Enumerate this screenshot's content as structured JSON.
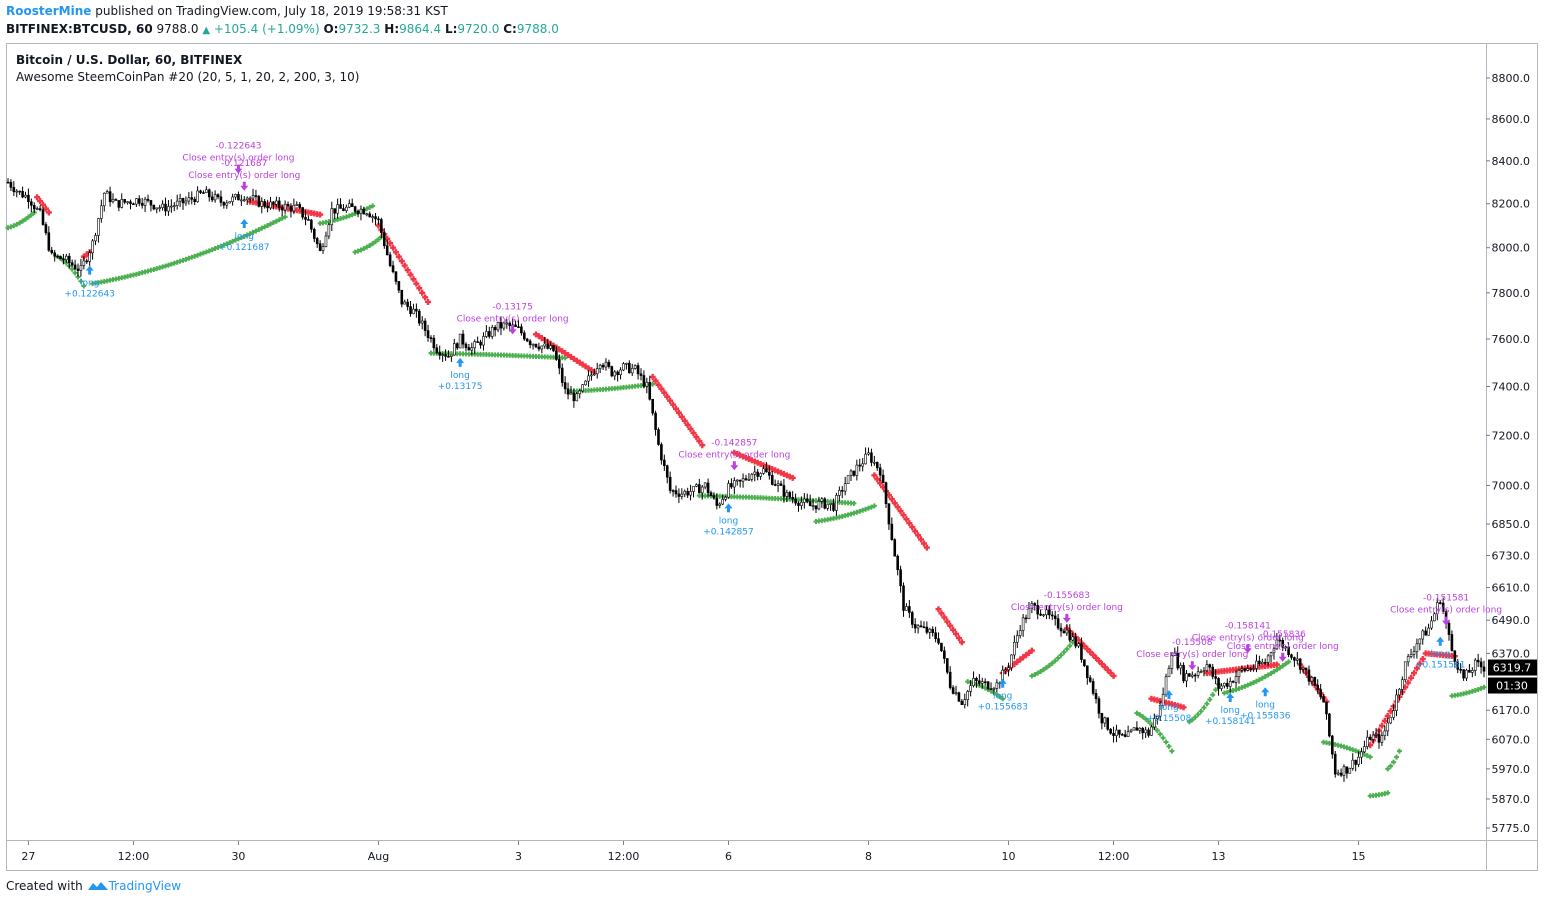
{
  "header": {
    "author": "RoosterMine",
    "published_text": "published on TradingView.com, July 18, 2019 19:58:31 KST",
    "symbol": "BITFINEX:BTCUSD, 60",
    "last": "9788.0",
    "change": "+105.4 (+1.09%)",
    "o_label": "O:",
    "o": "9732.3",
    "h_label": "H:",
    "h": "9864.4",
    "l_label": "L:",
    "l": "9720.0",
    "c_label": "C:",
    "c": "9788.0"
  },
  "legend": {
    "title": "Bitcoin / U.S. Dollar, 60, BITFINEX",
    "indicator": "Awesome SteemCoinPan #20 (20, 5, 1, 20, 2, 200, 3, 10)"
  },
  "footer": {
    "created_with": "Created with",
    "brand": "TradingView"
  },
  "colors": {
    "candle": "#000000",
    "sar_up": "#4caf50",
    "sar_down": "#f23645",
    "long_marker": "#2196f3",
    "close_marker": "#bb40e0",
    "axis_text": "#131722",
    "price_tag_bg": "#000000"
  },
  "chart_data": {
    "type": "candlestick",
    "title": "Bitcoin / U.S. Dollar, 60, BITFINEX",
    "ylim": [
      5730,
      8900
    ],
    "y_scale": "log",
    "y_ticks": [
      "8800.0",
      "8600.0",
      "8400.0",
      "8200.0",
      "8000.0",
      "7800.0",
      "7600.0",
      "7400.0",
      "7200.0",
      "7000.0",
      "6850.0",
      "6730.0",
      "6610.0",
      "6490.0",
      "6370.0",
      "6170.0",
      "6070.0",
      "5970.0",
      "5870.0",
      "5775.0"
    ],
    "x_ticks": [
      {
        "label": "27",
        "h": 0
      },
      {
        "label": "12:00",
        "h": 36
      },
      {
        "label": "30",
        "h": 72
      },
      {
        "label": "Aug",
        "h": 120
      },
      {
        "label": "3",
        "h": 168
      },
      {
        "label": "12:00",
        "h": 204
      },
      {
        "label": "6",
        "h": 240
      },
      {
        "label": "8",
        "h": 288
      },
      {
        "label": "10",
        "h": 336
      },
      {
        "label": "12:00",
        "h": 372
      },
      {
        "label": "13",
        "h": 408
      },
      {
        "label": "15",
        "h": 456
      }
    ],
    "x_range_hours": [
      -7,
      499
    ],
    "last_price_label": "6319.7",
    "countdown_label": "01:30",
    "price_path": [
      [
        -7,
        8300
      ],
      [
        -3,
        8250
      ],
      [
        0,
        8230
      ],
      [
        4,
        8150
      ],
      [
        8,
        7960
      ],
      [
        12,
        7950
      ],
      [
        18,
        7900
      ],
      [
        22,
        8020
      ],
      [
        26,
        8250
      ],
      [
        30,
        8200
      ],
      [
        38,
        8220
      ],
      [
        46,
        8180
      ],
      [
        54,
        8210
      ],
      [
        60,
        8250
      ],
      [
        66,
        8210
      ],
      [
        70,
        8220
      ],
      [
        74,
        8240
      ],
      [
        80,
        8200
      ],
      [
        86,
        8190
      ],
      [
        92,
        8180
      ],
      [
        96,
        8120
      ],
      [
        100,
        7980
      ],
      [
        104,
        8170
      ],
      [
        110,
        8180
      ],
      [
        116,
        8170
      ],
      [
        120,
        8120
      ],
      [
        124,
        7920
      ],
      [
        128,
        7760
      ],
      [
        132,
        7720
      ],
      [
        136,
        7640
      ],
      [
        140,
        7560
      ],
      [
        144,
        7530
      ],
      [
        148,
        7600
      ],
      [
        152,
        7560
      ],
      [
        156,
        7600
      ],
      [
        160,
        7650
      ],
      [
        164,
        7660
      ],
      [
        168,
        7640
      ],
      [
        172,
        7590
      ],
      [
        176,
        7570
      ],
      [
        180,
        7550
      ],
      [
        184,
        7380
      ],
      [
        188,
        7350
      ],
      [
        192,
        7430
      ],
      [
        196,
        7510
      ],
      [
        200,
        7460
      ],
      [
        204,
        7480
      ],
      [
        208,
        7470
      ],
      [
        212,
        7400
      ],
      [
        216,
        7160
      ],
      [
        220,
        6980
      ],
      [
        224,
        6970
      ],
      [
        228,
        6980
      ],
      [
        232,
        7000
      ],
      [
        236,
        6920
      ],
      [
        240,
        6990
      ],
      [
        244,
        7010
      ],
      [
        248,
        7050
      ],
      [
        252,
        7060
      ],
      [
        256,
        7010
      ],
      [
        260,
        6960
      ],
      [
        264,
        6940
      ],
      [
        268,
        6920
      ],
      [
        272,
        6930
      ],
      [
        276,
        6920
      ],
      [
        280,
        7010
      ],
      [
        284,
        7070
      ],
      [
        288,
        7120
      ],
      [
        292,
        7060
      ],
      [
        296,
        6800
      ],
      [
        300,
        6540
      ],
      [
        304,
        6470
      ],
      [
        308,
        6450
      ],
      [
        312,
        6420
      ],
      [
        316,
        6260
      ],
      [
        320,
        6200
      ],
      [
        324,
        6270
      ],
      [
        328,
        6260
      ],
      [
        332,
        6260
      ],
      [
        336,
        6330
      ],
      [
        340,
        6470
      ],
      [
        344,
        6540
      ],
      [
        348,
        6520
      ],
      [
        352,
        6480
      ],
      [
        356,
        6450
      ],
      [
        360,
        6390
      ],
      [
        364,
        6270
      ],
      [
        368,
        6140
      ],
      [
        372,
        6090
      ],
      [
        376,
        6070
      ],
      [
        380,
        6110
      ],
      [
        384,
        6090
      ],
      [
        388,
        6180
      ],
      [
        392,
        6380
      ],
      [
        396,
        6290
      ],
      [
        400,
        6300
      ],
      [
        404,
        6330
      ],
      [
        408,
        6250
      ],
      [
        412,
        6270
      ],
      [
        416,
        6310
      ],
      [
        420,
        6320
      ],
      [
        424,
        6340
      ],
      [
        428,
        6420
      ],
      [
        432,
        6380
      ],
      [
        436,
        6330
      ],
      [
        440,
        6270
      ],
      [
        444,
        6200
      ],
      [
        448,
        5960
      ],
      [
        452,
        5970
      ],
      [
        456,
        6010
      ],
      [
        460,
        6080
      ],
      [
        464,
        6070
      ],
      [
        468,
        6180
      ],
      [
        472,
        6330
      ],
      [
        476,
        6410
      ],
      [
        480,
        6460
      ],
      [
        484,
        6570
      ],
      [
        488,
        6380
      ],
      [
        492,
        6280
      ],
      [
        496,
        6330
      ],
      [
        499,
        6320
      ]
    ],
    "sar_segments": [
      {
        "dir": "up",
        "from": -7,
        "to": 2,
        "start": 8090,
        "end": 8160
      },
      {
        "dir": "down",
        "from": 3,
        "to": 7,
        "start": 8230,
        "end": 8160
      },
      {
        "dir": "up",
        "from": 10,
        "to": 19,
        "start": 7960,
        "end": 7830
      },
      {
        "dir": "down",
        "from": 19,
        "to": 21,
        "start": 7960,
        "end": 7980
      },
      {
        "dir": "up",
        "from": 22,
        "to": 88,
        "start": 7840,
        "end": 8140
      },
      {
        "dir": "down",
        "from": 76,
        "to": 100,
        "start": 8210,
        "end": 8150
      },
      {
        "dir": "up",
        "from": 100,
        "to": 118,
        "start": 8110,
        "end": 8190
      },
      {
        "dir": "up",
        "from": 112,
        "to": 122,
        "start": 7980,
        "end": 8060
      },
      {
        "dir": "down",
        "from": 120,
        "to": 137,
        "start": 8100,
        "end": 7760
      },
      {
        "dir": "up",
        "from": 138,
        "to": 184,
        "start": 7540,
        "end": 7520
      },
      {
        "dir": "down",
        "from": 174,
        "to": 194,
        "start": 7620,
        "end": 7460
      },
      {
        "dir": "up",
        "from": 186,
        "to": 214,
        "start": 7380,
        "end": 7410
      },
      {
        "dir": "down",
        "from": 214,
        "to": 231,
        "start": 7440,
        "end": 7160
      },
      {
        "dir": "up",
        "from": 230,
        "to": 283,
        "start": 6960,
        "end": 6930
      },
      {
        "dir": "down",
        "from": 242,
        "to": 262,
        "start": 7130,
        "end": 7030
      },
      {
        "dir": "up",
        "from": 270,
        "to": 290,
        "start": 6860,
        "end": 6920
      },
      {
        "dir": "down",
        "from": 290,
        "to": 308,
        "start": 7040,
        "end": 6760
      },
      {
        "dir": "down",
        "from": 312,
        "to": 320,
        "start": 6530,
        "end": 6410
      },
      {
        "dir": "up",
        "from": 322,
        "to": 334,
        "start": 6270,
        "end": 6210
      },
      {
        "dir": "down",
        "from": 334,
        "to": 344,
        "start": 6300,
        "end": 6380
      },
      {
        "dir": "up",
        "from": 344,
        "to": 358,
        "start": 6290,
        "end": 6410
      },
      {
        "dir": "down",
        "from": 356,
        "to": 372,
        "start": 6460,
        "end": 6290
      },
      {
        "dir": "up",
        "from": 380,
        "to": 392,
        "start": 6160,
        "end": 6030
      },
      {
        "dir": "down",
        "from": 385,
        "to": 396,
        "start": 6210,
        "end": 6180
      },
      {
        "dir": "up",
        "from": 398,
        "to": 408,
        "start": 6130,
        "end": 6260
      },
      {
        "dir": "down",
        "from": 404,
        "to": 428,
        "start": 6300,
        "end": 6330
      },
      {
        "dir": "up",
        "from": 410,
        "to": 432,
        "start": 6230,
        "end": 6340
      },
      {
        "dir": "down",
        "from": 436,
        "to": 445,
        "start": 6330,
        "end": 6200
      },
      {
        "dir": "up",
        "from": 444,
        "to": 460,
        "start": 6060,
        "end": 6010
      },
      {
        "dir": "down",
        "from": 460,
        "to": 478,
        "start": 6050,
        "end": 6350
      },
      {
        "dir": "up",
        "from": 466,
        "to": 470,
        "start": 5970,
        "end": 6030
      },
      {
        "dir": "up",
        "from": 460,
        "to": 466,
        "start": 5880,
        "end": 5890
      },
      {
        "dir": "down",
        "from": 479,
        "to": 489,
        "start": 6370,
        "end": 6360
      },
      {
        "dir": "up",
        "from": 488,
        "to": 499,
        "start": 6220,
        "end": 6250
      }
    ],
    "signals": [
      {
        "type": "long",
        "h": 21,
        "price": 7920,
        "label": "long",
        "value": "+0.122643"
      },
      {
        "type": "long",
        "h": 74,
        "price": 8130,
        "label": "long",
        "value": "+0.121687"
      },
      {
        "type": "close",
        "h": 74,
        "price": 8260,
        "label": "Close entry(s) order long",
        "value": "-0.121687"
      },
      {
        "type": "close",
        "h": 72,
        "price": 8340,
        "label": "Close entry(s) order long",
        "value": "-0.122643"
      },
      {
        "type": "long",
        "h": 148,
        "price": 7520,
        "label": "long",
        "value": "+0.13175"
      },
      {
        "type": "close",
        "h": 166,
        "price": 7620,
        "label": "Close entry(s) order long",
        "value": "-0.13175"
      },
      {
        "type": "long",
        "h": 240,
        "price": 6930,
        "label": "long",
        "value": "+0.142857"
      },
      {
        "type": "close",
        "h": 242,
        "price": 7060,
        "label": "Close entry(s) order long",
        "value": "-0.142857"
      },
      {
        "type": "long",
        "h": 334,
        "price": 6280,
        "label": "long",
        "value": "+0.155683"
      },
      {
        "type": "close",
        "h": 356,
        "price": 6480,
        "label": "Close entry(s) order long",
        "value": "-0.155683"
      },
      {
        "type": "long",
        "h": 391,
        "price": 6240,
        "label": "long",
        "value": "+0.15508"
      },
      {
        "type": "close",
        "h": 399,
        "price": 6310,
        "label": "Close entry(s) order long",
        "value": "-0.15508"
      },
      {
        "type": "long",
        "h": 412,
        "price": 6230,
        "label": "long",
        "value": "+0.158141"
      },
      {
        "type": "close",
        "h": 418,
        "price": 6370,
        "label": "Close entry(s) order long",
        "value": "-0.158141"
      },
      {
        "type": "long",
        "h": 424,
        "price": 6250,
        "label": "long",
        "value": "+0.155836"
      },
      {
        "type": "close",
        "h": 430,
        "price": 6340,
        "label": "Close entry(s) order long",
        "value": "-0.155836"
      },
      {
        "type": "long",
        "h": 484,
        "price": 6430,
        "label": "long",
        "value": "+0.151581"
      },
      {
        "type": "close",
        "h": 486,
        "price": 6470,
        "label": "Close entry(s) order long",
        "value": "-0.151581"
      }
    ]
  }
}
